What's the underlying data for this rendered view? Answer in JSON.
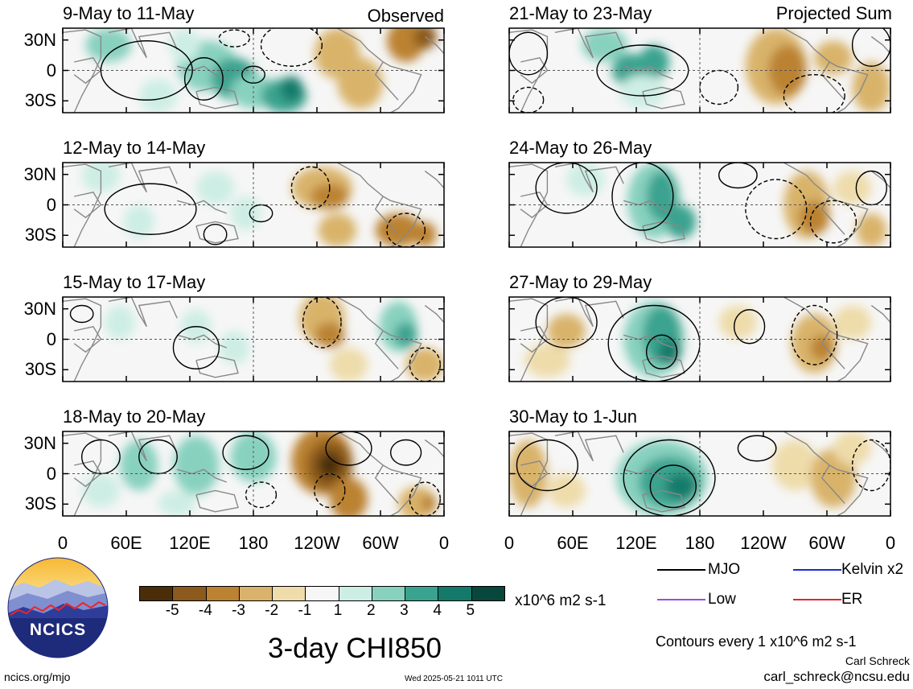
{
  "panels": {
    "left": [
      {
        "label": "9-May to 11-May",
        "tag": "Observed"
      },
      {
        "label": "12-May to 14-May"
      },
      {
        "label": "15-May to 17-May"
      },
      {
        "label": "18-May to 20-May"
      }
    ],
    "right": [
      {
        "label": "21-May to 23-May",
        "tag": "Projected Sum"
      },
      {
        "label": "24-May to 26-May"
      },
      {
        "label": "27-May to 29-May"
      },
      {
        "label": "30-May to 1-Jun"
      }
    ]
  },
  "lat_labels": [
    "30N",
    "0",
    "30S"
  ],
  "lon_labels": [
    "0",
    "60E",
    "120E",
    "180",
    "120W",
    "60W",
    "0"
  ],
  "colorbar": {
    "ticks": [
      "-5",
      "-4",
      "-3",
      "-2",
      "-1",
      "1",
      "2",
      "3",
      "4",
      "5"
    ],
    "units": "x10^6 m2 s-1",
    "colors": [
      "#4a2e0a",
      "#8b5a1c",
      "#bb8232",
      "#d9b36b",
      "#eedcaa",
      "#f6f6f6",
      "#cdeee4",
      "#88d1bf",
      "#3aa38f",
      "#137a6a",
      "#07473c"
    ]
  },
  "legend": [
    {
      "label": "MJO",
      "color": "#000000"
    },
    {
      "label": "Kelvin x2",
      "color": "#1a2bd8"
    },
    {
      "label": "Low",
      "color": "#9a4ee0"
    },
    {
      "label": "ER",
      "color": "#e0282c"
    }
  ],
  "main_title": "3-day CHI850",
  "contour_note": "Contours every 1 x10^6 m2 s-1",
  "author": "Carl Schreck",
  "email": "carl_schreck@ncsu.edu",
  "website": "ncics.org/mjo",
  "timestamp": "Wed 2025-05-21 1011 UTC",
  "logo_text": "NCICS"
}
